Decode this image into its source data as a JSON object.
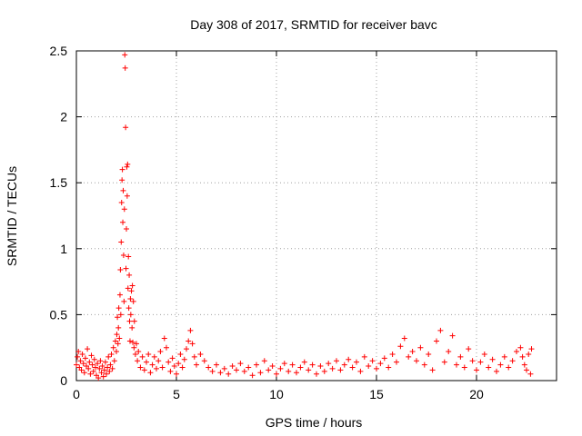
{
  "chart_data": {
    "type": "scatter",
    "title": "Day 308 of 2017, SRMTID for receiver bavc",
    "xlabel": "GPS time / hours",
    "ylabel": "SRMTID / TECUs",
    "xlim": [
      0,
      24
    ],
    "ylim": [
      0,
      2.5
    ],
    "xticks": [
      "0",
      "5",
      "10",
      "15",
      "20"
    ],
    "yticks": [
      "0",
      "0.5",
      "1",
      "1.5",
      "2",
      "2.5"
    ],
    "grid": true,
    "marker": "+",
    "color": "#ff0000",
    "series": [
      {
        "name": "bavc",
        "points": [
          [
            0.0,
            0.12
          ],
          [
            0.05,
            0.18
          ],
          [
            0.1,
            0.22
          ],
          [
            0.15,
            0.1
          ],
          [
            0.2,
            0.15
          ],
          [
            0.25,
            0.08
          ],
          [
            0.3,
            0.2
          ],
          [
            0.35,
            0.13
          ],
          [
            0.4,
            0.06
          ],
          [
            0.45,
            0.17
          ],
          [
            0.5,
            0.11
          ],
          [
            0.55,
            0.24
          ],
          [
            0.6,
            0.09
          ],
          [
            0.65,
            0.14
          ],
          [
            0.7,
            0.05
          ],
          [
            0.75,
            0.19
          ],
          [
            0.8,
            0.12
          ],
          [
            0.85,
            0.07
          ],
          [
            0.9,
            0.16
          ],
          [
            0.95,
            0.1
          ],
          [
            1.0,
            0.04
          ],
          [
            1.05,
            0.13
          ],
          [
            1.1,
            0.02
          ],
          [
            1.15,
            0.09
          ],
          [
            1.2,
            0.15
          ],
          [
            1.25,
            0.06
          ],
          [
            1.3,
            0.11
          ],
          [
            1.35,
            0.03
          ],
          [
            1.4,
            0.08
          ],
          [
            1.45,
            0.14
          ],
          [
            1.5,
            0.05
          ],
          [
            1.55,
            0.1
          ],
          [
            1.6,
            0.18
          ],
          [
            1.65,
            0.07
          ],
          [
            1.7,
            0.12
          ],
          [
            1.75,
            0.2
          ],
          [
            1.8,
            0.09
          ],
          [
            1.85,
            0.25
          ],
          [
            1.9,
            0.15
          ],
          [
            1.95,
            0.3
          ],
          [
            2.0,
            0.22
          ],
          [
            2.02,
            0.35
          ],
          [
            2.05,
            0.48
          ],
          [
            2.08,
            0.28
          ],
          [
            2.1,
            0.4
          ],
          [
            2.12,
            0.55
          ],
          [
            2.15,
            0.32
          ],
          [
            2.18,
            0.65
          ],
          [
            2.2,
            0.84
          ],
          [
            2.22,
            0.5
          ],
          [
            2.24,
            1.05
          ],
          [
            2.26,
            1.35
          ],
          [
            2.28,
            1.52
          ],
          [
            2.3,
            1.6
          ],
          [
            2.32,
            1.2
          ],
          [
            2.34,
            1.44
          ],
          [
            2.36,
            0.95
          ],
          [
            2.38,
            0.6
          ],
          [
            2.4,
            1.3
          ],
          [
            2.42,
            2.47
          ],
          [
            2.44,
            2.37
          ],
          [
            2.46,
            1.92
          ],
          [
            2.48,
            0.85
          ],
          [
            2.5,
            1.15
          ],
          [
            2.52,
            1.62
          ],
          [
            2.54,
            1.4
          ],
          [
            2.56,
            1.64
          ],
          [
            2.58,
            0.7
          ],
          [
            2.6,
            0.94
          ],
          [
            2.62,
            0.55
          ],
          [
            2.64,
            0.8
          ],
          [
            2.66,
            0.45
          ],
          [
            2.68,
            0.3
          ],
          [
            2.7,
            0.62
          ],
          [
            2.72,
            0.5
          ],
          [
            2.75,
            0.68
          ],
          [
            2.78,
            0.4
          ],
          [
            2.8,
            0.72
          ],
          [
            2.82,
            0.29
          ],
          [
            2.85,
            0.6
          ],
          [
            2.88,
            0.25
          ],
          [
            2.9,
            0.45
          ],
          [
            2.95,
            0.2
          ],
          [
            3.0,
            0.28
          ],
          [
            3.05,
            0.15
          ],
          [
            3.1,
            0.22
          ],
          [
            3.2,
            0.1
          ],
          [
            3.3,
            0.18
          ],
          [
            3.4,
            0.08
          ],
          [
            3.5,
            0.14
          ],
          [
            3.6,
            0.2
          ],
          [
            3.7,
            0.06
          ],
          [
            3.8,
            0.12
          ],
          [
            3.9,
            0.18
          ],
          [
            4.0,
            0.09
          ],
          [
            4.1,
            0.15
          ],
          [
            4.2,
            0.22
          ],
          [
            4.3,
            0.1
          ],
          [
            4.4,
            0.32
          ],
          [
            4.5,
            0.25
          ],
          [
            4.6,
            0.14
          ],
          [
            4.7,
            0.07
          ],
          [
            4.8,
            0.17
          ],
          [
            4.9,
            0.11
          ],
          [
            5.0,
            0.05
          ],
          [
            5.1,
            0.13
          ],
          [
            5.2,
            0.2
          ],
          [
            5.3,
            0.1
          ],
          [
            5.4,
            0.16
          ],
          [
            5.5,
            0.24
          ],
          [
            5.6,
            0.3
          ],
          [
            5.7,
            0.38
          ],
          [
            5.8,
            0.28
          ],
          [
            5.9,
            0.18
          ],
          [
            6.0,
            0.12
          ],
          [
            6.2,
            0.2
          ],
          [
            6.4,
            0.15
          ],
          [
            6.6,
            0.1
          ],
          [
            6.8,
            0.07
          ],
          [
            7.0,
            0.12
          ],
          [
            7.2,
            0.06
          ],
          [
            7.4,
            0.09
          ],
          [
            7.6,
            0.05
          ],
          [
            7.8,
            0.11
          ],
          [
            8.0,
            0.08
          ],
          [
            8.2,
            0.13
          ],
          [
            8.4,
            0.07
          ],
          [
            8.6,
            0.1
          ],
          [
            8.8,
            0.04
          ],
          [
            9.0,
            0.12
          ],
          [
            9.2,
            0.06
          ],
          [
            9.4,
            0.15
          ],
          [
            9.6,
            0.08
          ],
          [
            9.8,
            0.11
          ],
          [
            10.0,
            0.05
          ],
          [
            10.2,
            0.09
          ],
          [
            10.4,
            0.13
          ],
          [
            10.6,
            0.07
          ],
          [
            10.8,
            0.12
          ],
          [
            11.0,
            0.06
          ],
          [
            11.2,
            0.1
          ],
          [
            11.4,
            0.14
          ],
          [
            11.6,
            0.08
          ],
          [
            11.8,
            0.12
          ],
          [
            12.0,
            0.05
          ],
          [
            12.2,
            0.11
          ],
          [
            12.4,
            0.07
          ],
          [
            12.6,
            0.13
          ],
          [
            12.8,
            0.09
          ],
          [
            13.0,
            0.15
          ],
          [
            13.2,
            0.08
          ],
          [
            13.4,
            0.12
          ],
          [
            13.6,
            0.16
          ],
          [
            13.8,
            0.1
          ],
          [
            14.0,
            0.14
          ],
          [
            14.2,
            0.07
          ],
          [
            14.4,
            0.18
          ],
          [
            14.6,
            0.11
          ],
          [
            14.8,
            0.15
          ],
          [
            15.0,
            0.09
          ],
          [
            15.2,
            0.13
          ],
          [
            15.4,
            0.17
          ],
          [
            15.6,
            0.1
          ],
          [
            15.8,
            0.2
          ],
          [
            16.0,
            0.14
          ],
          [
            16.2,
            0.26
          ],
          [
            16.4,
            0.32
          ],
          [
            16.6,
            0.18
          ],
          [
            16.8,
            0.22
          ],
          [
            17.0,
            0.15
          ],
          [
            17.2,
            0.25
          ],
          [
            17.4,
            0.12
          ],
          [
            17.6,
            0.2
          ],
          [
            17.8,
            0.08
          ],
          [
            18.0,
            0.3
          ],
          [
            18.2,
            0.38
          ],
          [
            18.4,
            0.14
          ],
          [
            18.6,
            0.22
          ],
          [
            18.8,
            0.34
          ],
          [
            19.0,
            0.12
          ],
          [
            19.2,
            0.18
          ],
          [
            19.4,
            0.1
          ],
          [
            19.6,
            0.24
          ],
          [
            19.8,
            0.15
          ],
          [
            20.0,
            0.08
          ],
          [
            20.2,
            0.14
          ],
          [
            20.4,
            0.2
          ],
          [
            20.6,
            0.1
          ],
          [
            20.8,
            0.16
          ],
          [
            21.0,
            0.07
          ],
          [
            21.2,
            0.12
          ],
          [
            21.4,
            0.18
          ],
          [
            21.6,
            0.1
          ],
          [
            21.8,
            0.15
          ],
          [
            22.0,
            0.22
          ],
          [
            22.2,
            0.25
          ],
          [
            22.3,
            0.18
          ],
          [
            22.4,
            0.12
          ],
          [
            22.5,
            0.08
          ],
          [
            22.6,
            0.2
          ],
          [
            22.7,
            0.05
          ],
          [
            22.75,
            0.24
          ]
        ]
      }
    ]
  }
}
